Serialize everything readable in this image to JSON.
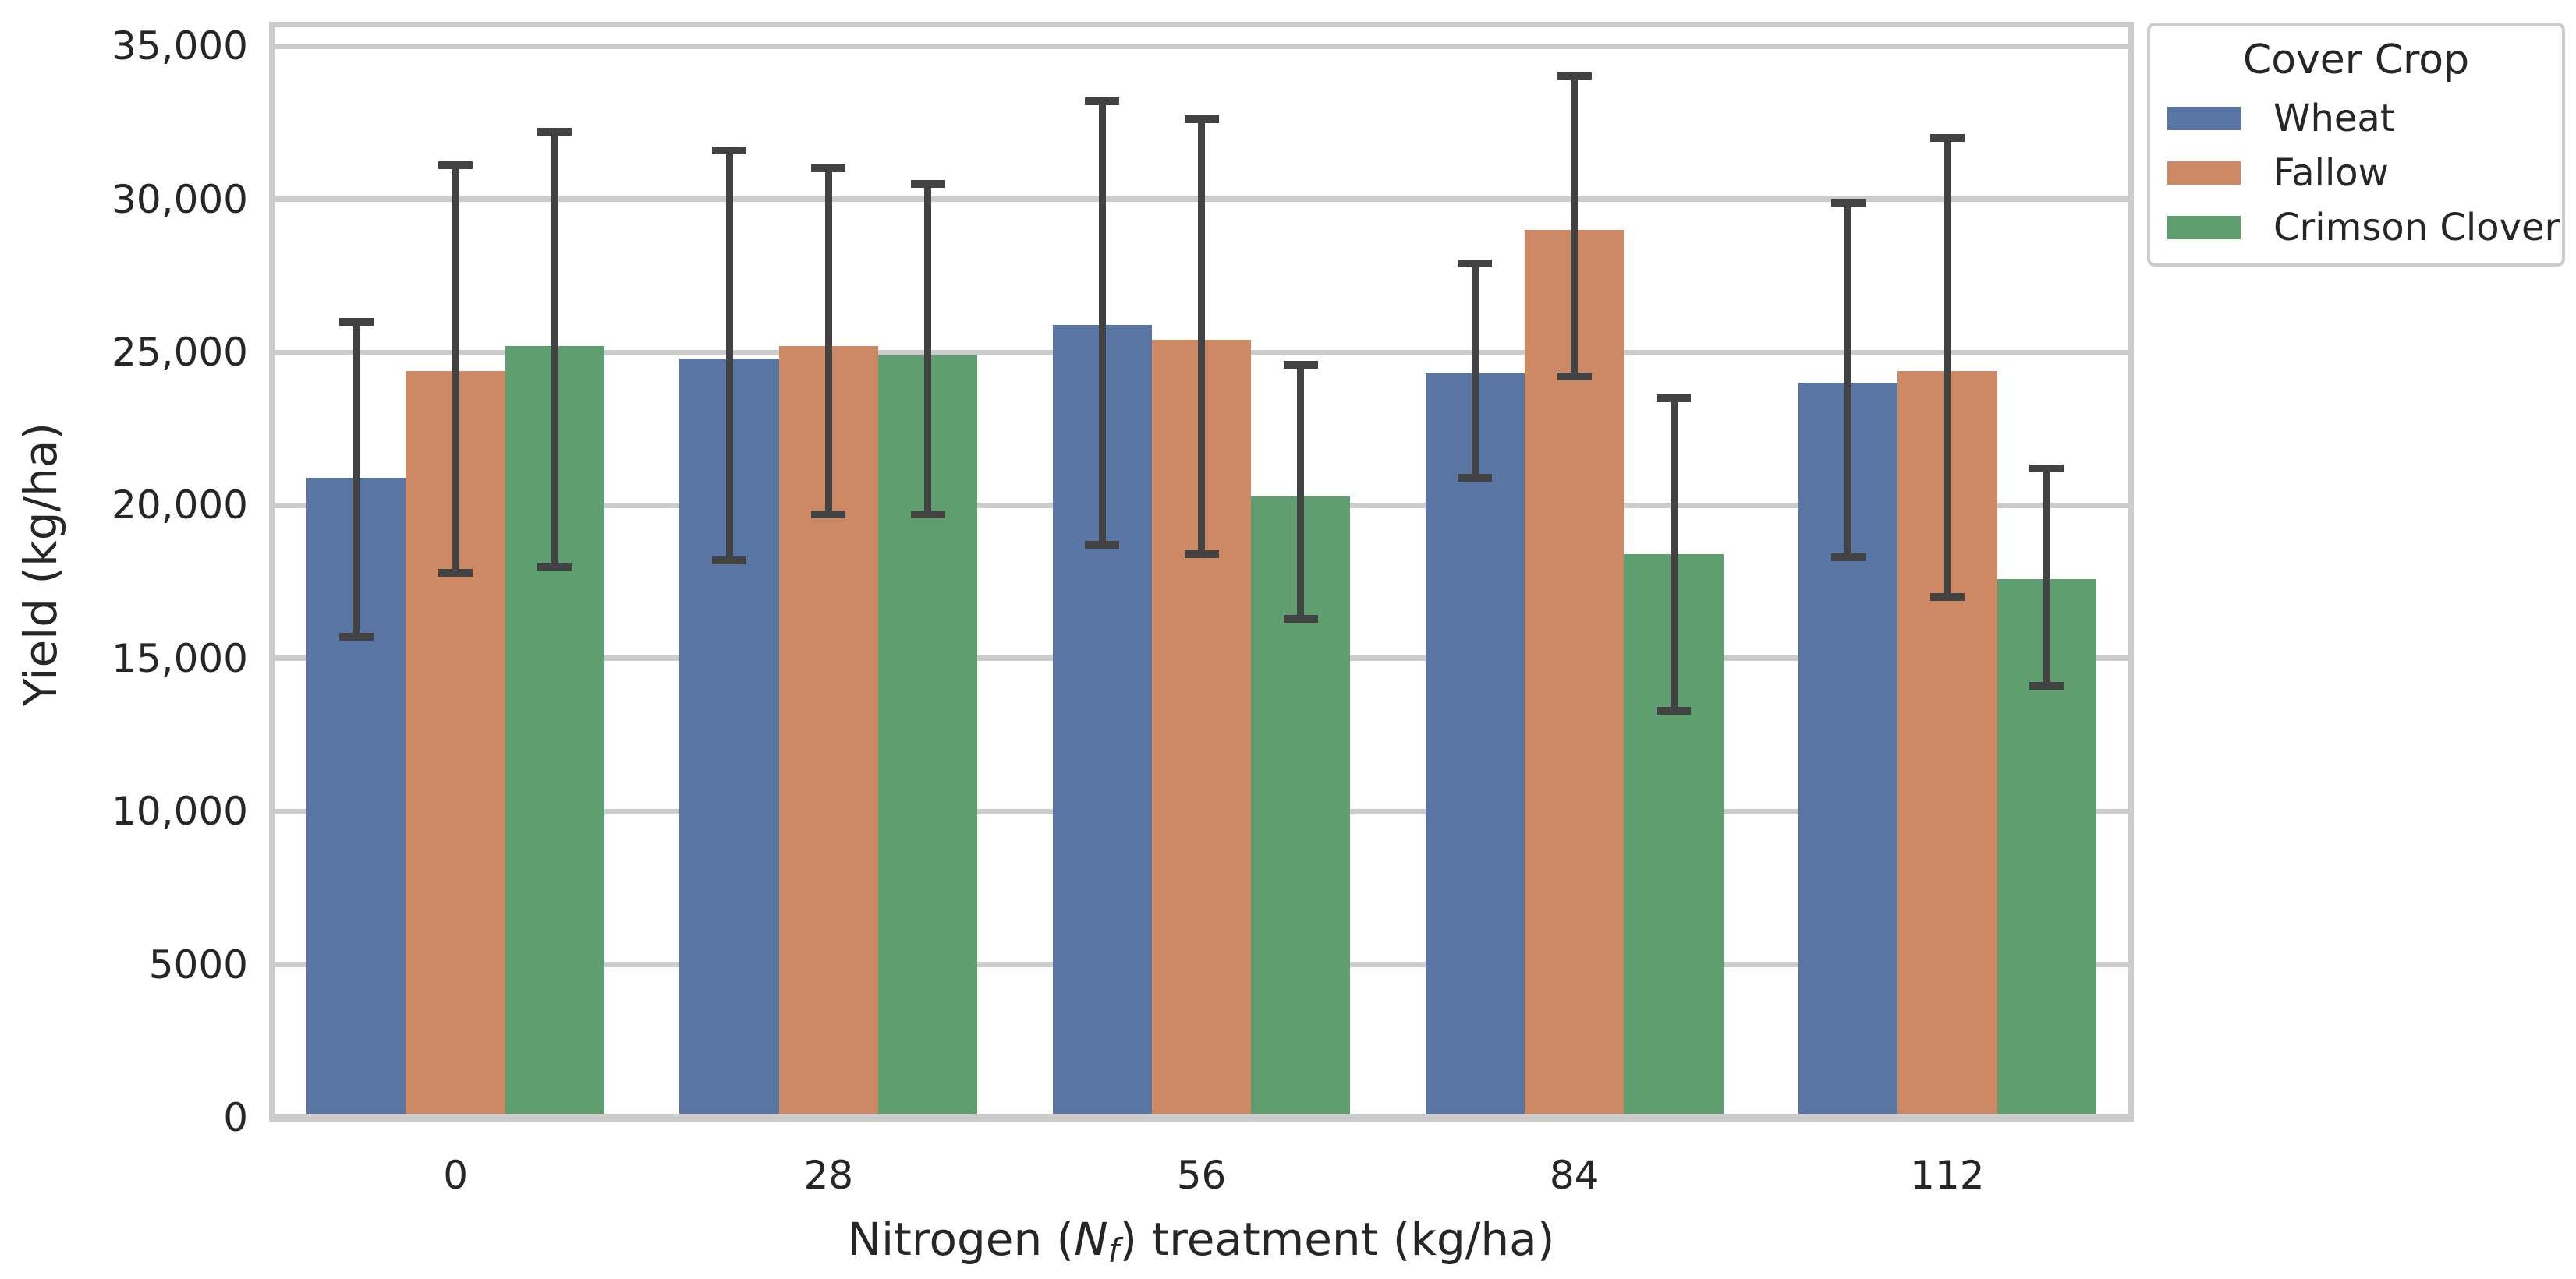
{
  "chart_data": {
    "type": "bar",
    "title": "",
    "ylabel": "Yield (kg/ha)",
    "xlabel": "Nitrogen (N_f) treatment (kg/ha)",
    "xlabel_parts": {
      "prefix": "Nitrogen (",
      "variable": "N",
      "subscript": "f",
      "suffix": ") treatment (kg/ha)"
    },
    "categories": [
      "0",
      "28",
      "56",
      "84",
      "112"
    ],
    "series": [
      {
        "name": "Wheat",
        "color": "#5875A4",
        "values": [
          20900,
          24800,
          25900,
          24300,
          24000
        ],
        "err_high": [
          26000,
          31600,
          33200,
          27900,
          29900
        ],
        "err_low": [
          15700,
          18200,
          18700,
          20900,
          18300
        ]
      },
      {
        "name": "Fallow",
        "color": "#CC8963",
        "values": [
          24400,
          25200,
          25400,
          29000,
          24400
        ],
        "err_high": [
          31100,
          31000,
          32600,
          34000,
          32000
        ],
        "err_low": [
          17800,
          19700,
          18400,
          24200,
          17000
        ]
      },
      {
        "name": "Crimson Clover",
        "color": "#5F9E6E",
        "values": [
          25200,
          24900,
          20300,
          18400,
          17600
        ],
        "err_high": [
          32200,
          30500,
          24600,
          23500,
          21200
        ],
        "err_low": [
          18000,
          19700,
          16300,
          13300,
          14100
        ]
      }
    ],
    "ylim": [
      0,
      35790
    ],
    "yticks": [
      {
        "value": 0,
        "label": "0"
      },
      {
        "value": 5000,
        "label": "5000"
      },
      {
        "value": 10000,
        "label": "10,000"
      },
      {
        "value": 15000,
        "label": "15,000"
      },
      {
        "value": 20000,
        "label": "20,000"
      },
      {
        "value": 25000,
        "label": "25,000"
      },
      {
        "value": 30000,
        "label": "30,000"
      },
      {
        "value": 35000,
        "label": "35,000"
      }
    ],
    "grid": "horizontal",
    "grid_color": "#CCCCCC",
    "error_bar_color": "#424242",
    "legend": {
      "title": "Cover Crop",
      "position": "upper-right-outside"
    }
  }
}
